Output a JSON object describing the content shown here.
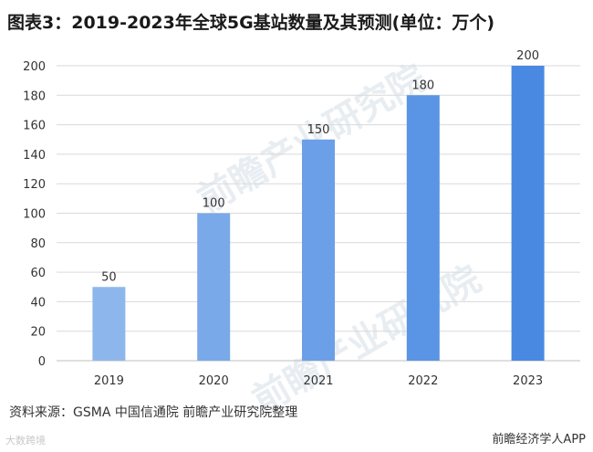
{
  "title": "图表3：2019-2023年全球5G基站数量及其预测(单位：万个)",
  "source": "资料来源：GSMA 中国信通院 前瞻产业研究院整理",
  "footer_right": "前瞻经济学人APP",
  "footer_left": "大数跨境",
  "watermark": "前瞻产业研究院",
  "colors": {
    "bars": [
      "#8db7ec",
      "#7aa9ea",
      "#6b9fe8",
      "#5a94e5",
      "#4a89e2"
    ],
    "grid": "#d9d9d9",
    "axis": "#bfbfbf",
    "text": "#333333"
  },
  "chart_data": {
    "type": "bar",
    "categories": [
      "2019",
      "2020",
      "2021",
      "2022",
      "2023"
    ],
    "values": [
      50,
      100,
      150,
      180,
      200
    ],
    "data_labels": [
      "50",
      "100",
      "150",
      "180",
      "200"
    ],
    "yticks": [
      "0",
      "20",
      "40",
      "60",
      "80",
      "100",
      "120",
      "140",
      "160",
      "180",
      "200"
    ],
    "ylim": [
      0,
      200
    ],
    "grid": true,
    "legend": "none"
  }
}
